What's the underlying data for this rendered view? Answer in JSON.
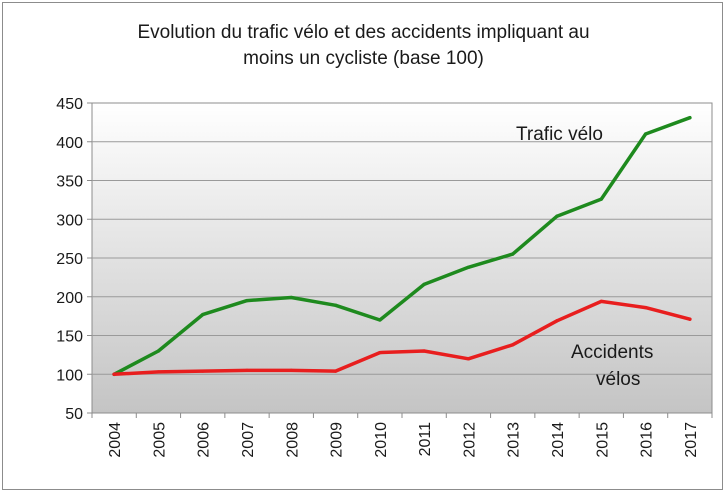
{
  "chart_data": {
    "type": "line",
    "title": [
      "Evolution du trafic vélo et des accidents impliquant au",
      "moins un cycliste (base 100)"
    ],
    "x": [
      "2004",
      "2005",
      "2006",
      "2007",
      "2008",
      "2009",
      "2010",
      "2011",
      "2012",
      "2013",
      "2014",
      "2015",
      "2016",
      "2017"
    ],
    "ylim": [
      50,
      450
    ],
    "yticks": [
      50,
      100,
      150,
      200,
      250,
      300,
      350,
      400,
      450
    ],
    "grid": true,
    "legend": "none",
    "series": [
      {
        "name": "Trafic vélo",
        "color": "#1e8a1e",
        "values": [
          100,
          130,
          177,
          195,
          199,
          189,
          170,
          216,
          238,
          255,
          304,
          326,
          410,
          431
        ]
      },
      {
        "name": "Accidents vélos",
        "label_lines": [
          "Accidents",
          "vélos"
        ],
        "color": "#e81e1e",
        "values": [
          100,
          103,
          104,
          105,
          105,
          104,
          128,
          130,
          120,
          138,
          169,
          194,
          186,
          171
        ]
      }
    ]
  }
}
